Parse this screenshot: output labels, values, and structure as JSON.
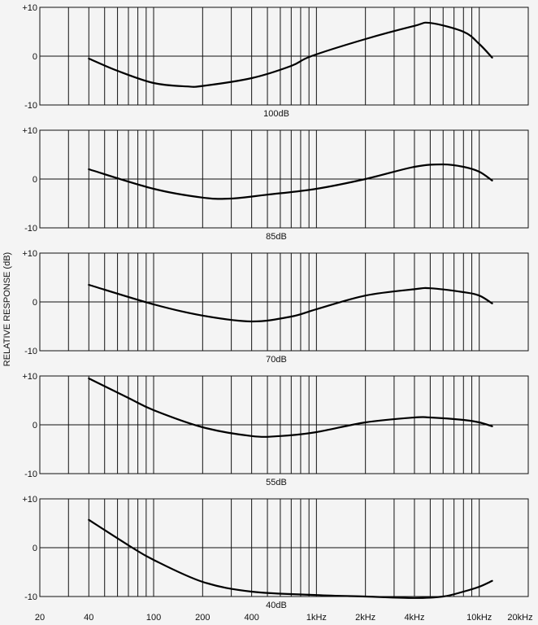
{
  "chart_data": [
    {
      "type": "line",
      "title": "100dB",
      "xscale": "log",
      "xlim": [
        20,
        20000
      ],
      "ylim": [
        -10,
        10
      ],
      "x": [
        40,
        60,
        100,
        160,
        200,
        400,
        700,
        930,
        2000,
        4000,
        5000,
        8000,
        10000,
        12000
      ],
      "y": [
        -0.5,
        -3,
        -5.5,
        -6.2,
        -6.1,
        -4.5,
        -2,
        0,
        3.5,
        6.2,
        6.8,
        5,
        2.5,
        -0.3
      ]
    },
    {
      "type": "line",
      "title": "85dB",
      "xscale": "log",
      "xlim": [
        20,
        20000
      ],
      "ylim": [
        -10,
        10
      ],
      "x": [
        40,
        100,
        200,
        300,
        500,
        1000,
        2000,
        4000,
        6000,
        8000,
        10000,
        12000
      ],
      "y": [
        2,
        -2,
        -3.8,
        -4,
        -3.2,
        -2,
        0,
        2.5,
        3,
        2.5,
        1.5,
        -0.3
      ]
    },
    {
      "type": "line",
      "title": "70dB",
      "xscale": "log",
      "xlim": [
        20,
        20000
      ],
      "ylim": [
        -10,
        10
      ],
      "x": [
        40,
        100,
        200,
        400,
        700,
        1000,
        2000,
        4000,
        5000,
        8000,
        10000,
        12000
      ],
      "y": [
        3.5,
        -0.5,
        -2.8,
        -4,
        -3,
        -1.5,
        1.3,
        2.6,
        2.8,
        2,
        1.3,
        -0.3
      ]
    },
    {
      "type": "line",
      "title": "55dB",
      "xscale": "log",
      "xlim": [
        20,
        20000
      ],
      "ylim": [
        -10,
        10
      ],
      "x": [
        40,
        70,
        100,
        200,
        400,
        600,
        1000,
        2000,
        4000,
        5000,
        8000,
        10000,
        12000
      ],
      "y": [
        9.5,
        5.5,
        3,
        -0.5,
        -2.3,
        -2.3,
        -1.5,
        0.5,
        1.5,
        1.5,
        1,
        0.5,
        -0.3
      ]
    },
    {
      "type": "line",
      "title": "40dB",
      "xscale": "log",
      "xlim": [
        20,
        20000
      ],
      "ylim": [
        -10,
        10
      ],
      "x": [
        40,
        70,
        100,
        200,
        400,
        1000,
        2000,
        4000,
        6000,
        8000,
        10000,
        12000
      ],
      "y": [
        5.7,
        0.5,
        -2.5,
        -7,
        -9,
        -9.7,
        -10,
        -10.3,
        -10,
        -9,
        -8,
        -6.8
      ]
    }
  ],
  "ylabel": "RELATIVE RESPONSE (dB)",
  "y_ticks": [
    "+10",
    "0",
    "-10"
  ],
  "x_ticks": [
    {
      "f": 20,
      "label": "20"
    },
    {
      "f": 40,
      "label": "40"
    },
    {
      "f": 100,
      "label": "100"
    },
    {
      "f": 200,
      "label": "200"
    },
    {
      "f": 400,
      "label": "400"
    },
    {
      "f": 1000,
      "label": "1kHz"
    },
    {
      "f": 2000,
      "label": "2kHz"
    },
    {
      "f": 4000,
      "label": "4kHz"
    },
    {
      "f": 10000,
      "label": "10kHz"
    },
    {
      "f": 20000,
      "label": "20kHz"
    }
  ],
  "grid_freqs": [
    30,
    40,
    50,
    60,
    70,
    80,
    90,
    100,
    200,
    300,
    400,
    500,
    600,
    700,
    800,
    900,
    1000,
    2000,
    3000,
    4000,
    5000,
    6000,
    7000,
    8000,
    9000,
    10000
  ],
  "colors": {
    "background": "#f4f4f4",
    "ink": "#111111"
  }
}
